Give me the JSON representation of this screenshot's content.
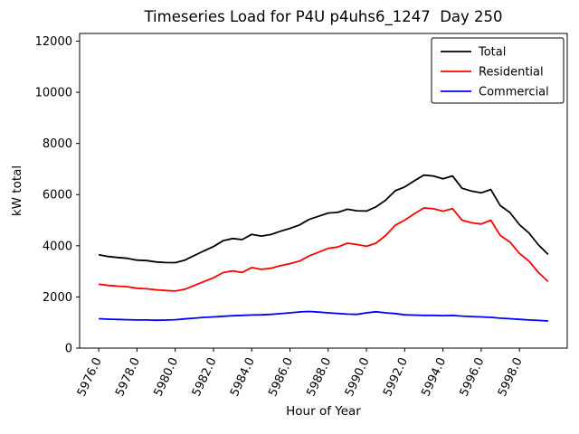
{
  "chart_data": {
    "type": "line",
    "title": "Timeseries Load for P4U p4uhs6_1247  Day 250",
    "xlabel": "Hour of Year",
    "ylabel": "kW total",
    "xlim": [
      5975.0,
      6000.5
    ],
    "ylim": [
      0,
      12300
    ],
    "xticks": [
      "5976.0",
      "5978.0",
      "5980.0",
      "5982.0",
      "5984.0",
      "5986.0",
      "5988.0",
      "5990.0",
      "5992.0",
      "5994.0",
      "5996.0",
      "5998.0"
    ],
    "yticks": [
      "0",
      "2000",
      "4000",
      "6000",
      "8000",
      "10000",
      "12000"
    ],
    "grid": false,
    "legend_position": "upper right",
    "x": [
      5976,
      5976.5,
      5977,
      5977.5,
      5978,
      5978.5,
      5979,
      5979.5,
      5980,
      5980.5,
      5981,
      5981.5,
      5982,
      5982.5,
      5983,
      5983.5,
      5984,
      5984.5,
      5985,
      5985.5,
      5986,
      5986.5,
      5987,
      5987.5,
      5988,
      5988.5,
      5989,
      5989.5,
      5990,
      5990.5,
      5991,
      5991.5,
      5992,
      5992.5,
      5993,
      5993.5,
      5994,
      5994.5,
      5995,
      5995.5,
      5996,
      5996.5,
      5997,
      5997.5,
      5998,
      5998.5,
      5999,
      5999.5
    ],
    "series": [
      {
        "name": "Total",
        "color": "#000000",
        "values": [
          3650,
          3580,
          3540,
          3510,
          3440,
          3420,
          3370,
          3345,
          3340,
          3440,
          3620,
          3800,
          3970,
          4195,
          4285,
          4240,
          4445,
          4380,
          4440,
          4565,
          4680,
          4815,
          5030,
          5155,
          5280,
          5305,
          5430,
          5370,
          5360,
          5520,
          5780,
          6150,
          6300,
          6540,
          6760,
          6730,
          6620,
          6730,
          6250,
          6135,
          6070,
          6200,
          5570,
          5300,
          4825,
          4500,
          4030,
          3660
        ]
      },
      {
        "name": "Residential",
        "color": "#ff0000",
        "values": [
          2500,
          2450,
          2420,
          2400,
          2340,
          2320,
          2280,
          2250,
          2230,
          2300,
          2450,
          2600,
          2750,
          2950,
          3020,
          2960,
          3150,
          3080,
          3120,
          3220,
          3300,
          3400,
          3600,
          3750,
          3900,
          3950,
          4100,
          4050,
          3980,
          4100,
          4400,
          4800,
          5000,
          5250,
          5480,
          5450,
          5350,
          5450,
          5000,
          4900,
          4850,
          5000,
          4400,
          4150,
          3700,
          3400,
          2950,
          2600
        ]
      },
      {
        "name": "Commercial",
        "color": "#0000ff",
        "values": [
          1150,
          1130,
          1120,
          1110,
          1100,
          1100,
          1090,
          1095,
          1110,
          1140,
          1170,
          1200,
          1220,
          1245,
          1265,
          1280,
          1295,
          1300,
          1320,
          1345,
          1380,
          1415,
          1430,
          1405,
          1380,
          1355,
          1330,
          1320,
          1380,
          1420,
          1380,
          1350,
          1300,
          1290,
          1280,
          1280,
          1270,
          1280,
          1250,
          1235,
          1220,
          1200,
          1170,
          1150,
          1125,
          1100,
          1080,
          1060
        ]
      }
    ]
  }
}
